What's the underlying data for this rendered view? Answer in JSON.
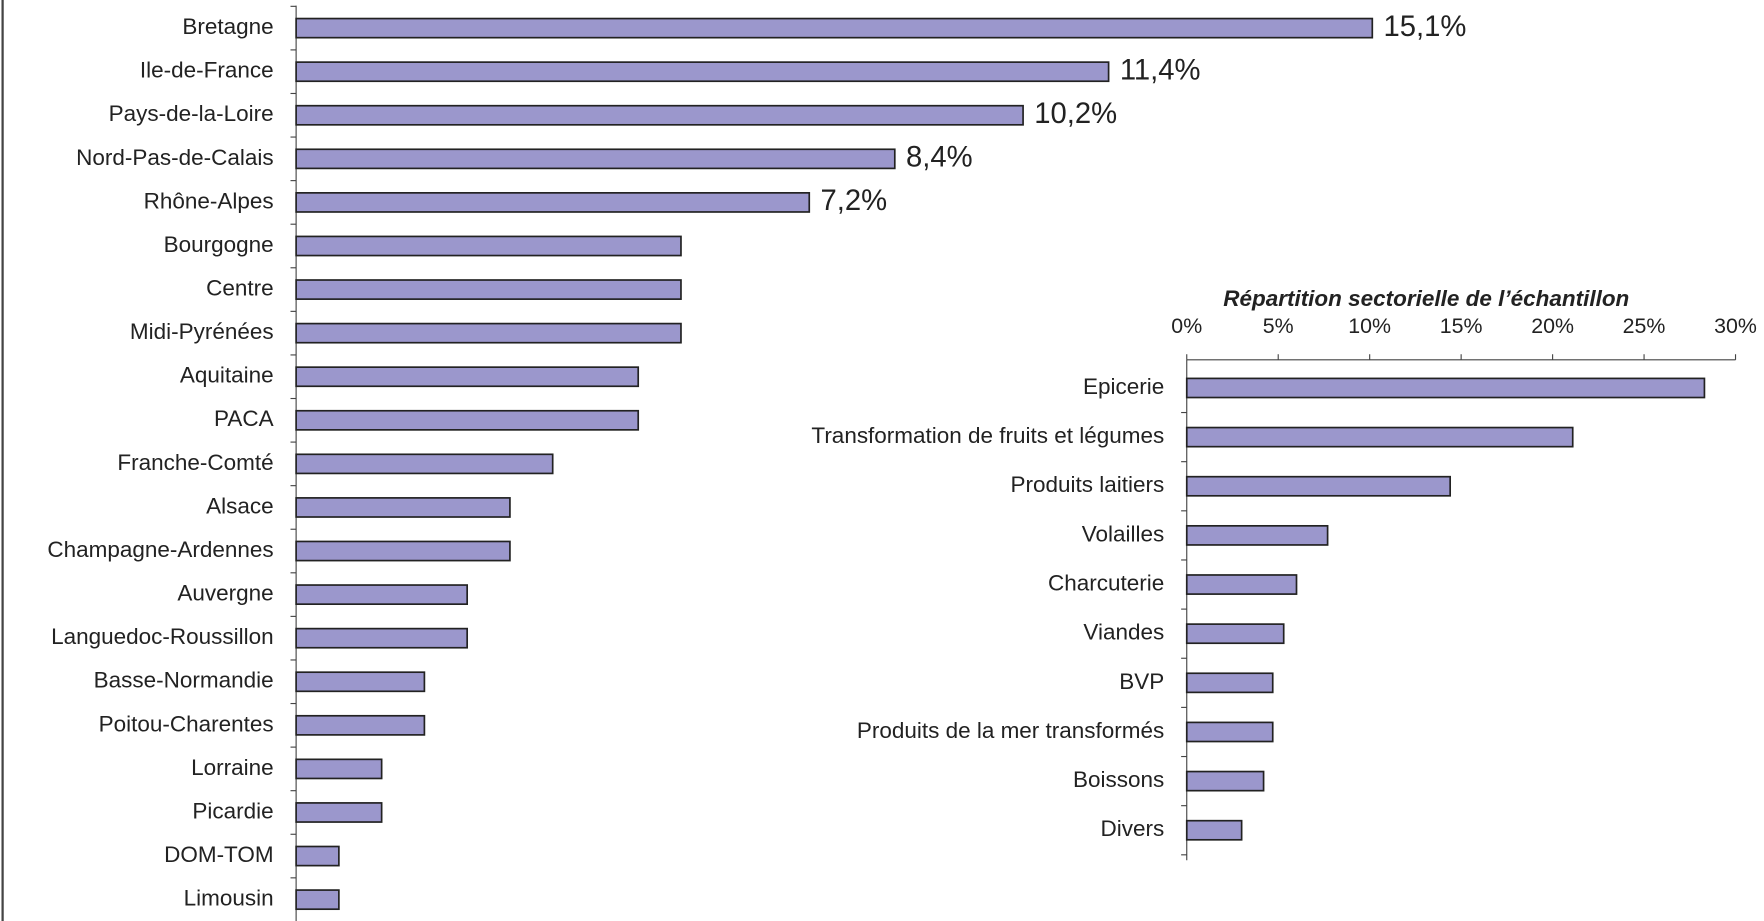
{
  "chart_data": [
    {
      "type": "bar",
      "orientation": "horizontal",
      "color": "#9b97cc",
      "categories": [
        "Bretagne",
        "Ile-de-France",
        "Pays-de-la-Loire",
        "Nord-Pas-de-Calais",
        "Rhône-Alpes",
        "Bourgogne",
        "Centre",
        "Midi-Pyrénées",
        "Aquitaine",
        "PACA",
        "Franche-Comté",
        "Alsace",
        "Champagne-Ardennes",
        "Auvergne",
        "Languedoc-Roussillon",
        "Basse-Normandie",
        "Poitou-Charentes",
        "Lorraine",
        "Picardie",
        "DOM-TOM",
        "Limousin"
      ],
      "values": [
        15.1,
        11.4,
        10.2,
        8.4,
        7.2,
        5.4,
        5.4,
        5.4,
        4.8,
        4.8,
        3.6,
        3.0,
        3.0,
        2.4,
        2.4,
        1.8,
        1.8,
        1.2,
        1.2,
        0.6,
        0.6
      ],
      "value_labels": [
        "15,1%",
        "11,4%",
        "10,2%",
        "8,4%",
        "7,2%",
        null,
        null,
        null,
        null,
        null,
        null,
        null,
        null,
        null,
        null,
        null,
        null,
        null,
        null,
        null,
        null
      ]
    },
    {
      "type": "bar",
      "orientation": "horizontal",
      "color": "#9b97cc",
      "title": "Répartition sectorielle de l’échantillon",
      "categories": [
        "Epicerie",
        "Transformation de fruits et légumes",
        "Produits laitiers",
        "Volailles",
        "Charcuterie",
        "Viandes",
        "BVP",
        "Produits de la mer transformés",
        "Boissons",
        "Divers"
      ],
      "values": [
        28.3,
        21.1,
        14.4,
        7.7,
        6.0,
        5.3,
        4.7,
        4.7,
        4.2,
        3.0
      ],
      "xlim": [
        0,
        30
      ],
      "xticks": [
        {
          "value": 0,
          "label": "0%"
        },
        {
          "value": 5,
          "label": "5%"
        },
        {
          "value": 10,
          "label": "10%"
        },
        {
          "value": 15,
          "label": "15%"
        },
        {
          "value": 20,
          "label": "20%"
        },
        {
          "value": 25,
          "label": "25%"
        },
        {
          "value": 30,
          "label": "30%"
        }
      ]
    }
  ]
}
